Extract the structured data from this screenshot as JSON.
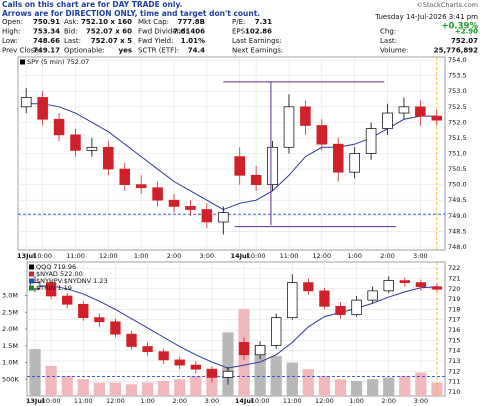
{
  "header": {
    "notes": [
      "Calls on this chart are for DAY TRADE only.",
      "Arrows are for DIRECTION ONLY, time and target don't count."
    ],
    "credit": "©StockCharts.com"
  },
  "quote": {
    "columns": [
      [
        [
          "Open:",
          "750.91"
        ],
        [
          "High:",
          "753.34"
        ],
        [
          "Low:",
          "748.66"
        ],
        [
          "Prev Close:",
          "749.17"
        ]
      ],
      [
        [
          "Ask:",
          "752.10 x 160"
        ],
        [
          "Bid:",
          "752.07 x 60"
        ],
        [
          "Last:",
          "752.07 x 5"
        ],
        [
          "Optionable:",
          "yes"
        ]
      ],
      [
        [
          "Mkt Cap:",
          "777.8B"
        ],
        [
          "Fwd Dividend:",
          "7.61406"
        ],
        [
          "Fwd Yield:",
          "1.01%"
        ],
        [
          "SCTR (ETF):",
          "74.4"
        ]
      ],
      [
        [
          "P/E:",
          "7.31"
        ],
        [
          "EPS:",
          "102.86"
        ],
        [
          "Last Earnings:",
          ""
        ],
        [
          "Next Earnings:",
          ""
        ]
      ]
    ],
    "right": {
      "datetime": "Tuesday 14-Jul-2026  3:41 pm",
      "change_pct": "+0.39%",
      "chg": [
        "Chg:",
        "+2.90"
      ],
      "last": [
        "Last:",
        "752.07"
      ],
      "volume": [
        "Volume:",
        "25,776,892"
      ]
    }
  },
  "chart_data": [
    {
      "type": "candlestick",
      "legend": [
        {
          "text": "SPY (5 min) 752.07",
          "color": "#000000"
        }
      ],
      "open": [
        752.5,
        752.8,
        752.1,
        751.6,
        751.1,
        751.2,
        750.5,
        750.0,
        749.9,
        749.5,
        749.3,
        749.2,
        748.8,
        750.9,
        750.3,
        750.0,
        751.2,
        752.5,
        751.9,
        751.3,
        750.4,
        751.0,
        751.8,
        752.3,
        752.5,
        752.2
      ],
      "high": [
        753.1,
        753.0,
        752.3,
        751.8,
        751.5,
        751.4,
        750.7,
        750.3,
        750.1,
        749.7,
        749.5,
        749.4,
        749.3,
        751.2,
        750.6,
        751.4,
        752.9,
        752.7,
        752.1,
        751.5,
        751.2,
        752.0,
        752.6,
        752.8,
        752.7,
        752.4
      ],
      "low": [
        752.3,
        751.9,
        751.4,
        750.9,
        750.9,
        750.3,
        749.8,
        749.7,
        749.3,
        749.1,
        749.0,
        748.6,
        748.4,
        750.0,
        749.8,
        749.8,
        751.0,
        751.6,
        751.1,
        750.1,
        750.2,
        750.8,
        751.6,
        752.1,
        751.9,
        751.9
      ],
      "close": [
        752.8,
        752.1,
        751.6,
        751.1,
        751.2,
        750.5,
        750.0,
        749.9,
        749.5,
        749.3,
        749.2,
        748.8,
        749.1,
        750.3,
        750.0,
        751.2,
        752.5,
        751.9,
        751.3,
        750.4,
        751.0,
        751.8,
        752.3,
        752.5,
        752.2,
        752.07
      ],
      "ma": [
        752.6,
        752.6,
        752.5,
        752.3,
        752.0,
        751.7,
        751.3,
        750.9,
        750.5,
        750.1,
        749.8,
        749.5,
        749.2,
        749.4,
        749.5,
        749.8,
        750.3,
        750.9,
        751.2,
        751.2,
        751.3,
        751.5,
        751.8,
        752.1,
        752.2,
        752.2
      ],
      "ma_color": "#2b3a9a",
      "up_color": "#000000",
      "down_color": "#d0202a",
      "segments": [
        {
          "x": [
            12,
            21.8
          ],
          "y": [
            753.3,
            753.3
          ]
        },
        {
          "x": [
            12.7,
            22.5
          ],
          "y": [
            748.65,
            748.65
          ]
        },
        {
          "x": [
            14.9,
            14.9
          ],
          "y": [
            748.7,
            753.3
          ]
        }
      ],
      "segment_color": "#5b2d8e",
      "dashed_level": 749.05,
      "dashed_color": "#2e46c8",
      "xlim": [
        -0.5,
        25.5
      ],
      "xticks": [
        {
          "value": 0,
          "label": "13Jul"
        },
        {
          "value": 1,
          "label": "10:00"
        },
        {
          "value": 3,
          "label": "11:00"
        },
        {
          "value": 5,
          "label": "12:00"
        },
        {
          "value": 7,
          "label": "1:00"
        },
        {
          "value": 9,
          "label": "2:00"
        },
        {
          "value": 11,
          "label": "3:00"
        },
        {
          "value": 13,
          "label": "14Jul"
        },
        {
          "value": 14,
          "label": "10:00"
        },
        {
          "value": 16,
          "label": "11:00"
        },
        {
          "value": 18,
          "label": "12:00"
        },
        {
          "value": 20,
          "label": "1:00"
        },
        {
          "value": 22,
          "label": "2:00"
        },
        {
          "value": 24,
          "label": "3:00"
        }
      ],
      "ylim": [
        747.9,
        754.1
      ],
      "yticks": [
        {
          "value": 748,
          "label": "748.0"
        },
        748.5,
        {
          "value": 749,
          "label": "749.0"
        },
        749.5,
        {
          "value": 750,
          "label": "750.0"
        },
        750.5,
        {
          "value": 751,
          "label": "751.0"
        },
        751.5,
        {
          "value": 752,
          "label": "752.0"
        },
        752.5,
        {
          "value": 753,
          "label": "753.0"
        },
        753.5,
        {
          "value": 754,
          "label": "754.0"
        }
      ],
      "grid": true
    },
    {
      "type": "candlestick",
      "legend": [
        {
          "text": "QQQ 719.96",
          "color": "#000000"
        },
        {
          "text": "$NYAD 522.00",
          "color": "#d0202a"
        },
        {
          "text": "$NYUPV:$NYDNV 1.23",
          "color": "#2e46c8"
        },
        {
          "text": "$TRIN 1.19",
          "color": "#1a8a2a"
        }
      ],
      "open": [
        720.0,
        720.6,
        719.3,
        718.5,
        717.2,
        716.8,
        715.6,
        714.4,
        713.9,
        713.1,
        712.6,
        712.2,
        711.4,
        714.8,
        713.6,
        714.5,
        717.2,
        720.6,
        719.8,
        718.3,
        717.5,
        718.9,
        719.8,
        720.8,
        720.6,
        720.2
      ],
      "high": [
        721.2,
        720.9,
        719.6,
        718.8,
        717.6,
        717.1,
        715.9,
        714.8,
        714.2,
        713.4,
        713.0,
        712.5,
        712.4,
        715.3,
        714.9,
        717.6,
        721.4,
        721.0,
        720.1,
        718.7,
        719.3,
        720.2,
        721.2,
        721.1,
        720.9,
        720.5
      ],
      "low": [
        719.7,
        719.0,
        718.1,
        716.9,
        716.3,
        715.3,
        714.1,
        713.5,
        712.7,
        712.2,
        711.8,
        710.9,
        710.7,
        713.1,
        713.2,
        714.2,
        717.0,
        719.4,
        718.0,
        717.1,
        717.3,
        718.6,
        719.6,
        720.2,
        719.8,
        719.7
      ],
      "close": [
        720.6,
        719.3,
        718.5,
        717.2,
        716.8,
        715.6,
        714.4,
        713.9,
        713.1,
        712.6,
        712.2,
        711.4,
        712.0,
        713.6,
        714.5,
        717.2,
        720.6,
        719.8,
        718.3,
        717.5,
        718.9,
        719.8,
        720.8,
        720.6,
        720.2,
        719.96
      ],
      "ma": [
        720.2,
        720.3,
        720.0,
        719.5,
        718.8,
        718.0,
        717.1,
        716.2,
        715.3,
        714.4,
        713.6,
        712.9,
        712.3,
        712.6,
        712.9,
        713.6,
        714.8,
        716.3,
        717.3,
        717.7,
        718.1,
        718.6,
        719.2,
        719.7,
        720.1,
        720.2
      ],
      "ma_color": "#2b3a9a",
      "up_color": "#000000",
      "down_color": "#d0202a",
      "volume": [
        1400000,
        900000,
        600000,
        500000,
        400000,
        400000,
        350000,
        400000,
        450000,
        500000,
        600000,
        800000,
        1900000,
        2600000,
        1500000,
        1200000,
        1000000,
        800000,
        600000,
        500000,
        450000,
        500000,
        550000,
        600000,
        700000,
        400000
      ],
      "volume_up_color": "#b8b8b8",
      "volume_down_color": "#f0b8bc",
      "dashed_level": 711.5,
      "dashed_color": "#2e46c8",
      "xlim": [
        -0.5,
        25.5
      ],
      "xticks": [
        {
          "value": 0,
          "label": "13Jul"
        },
        {
          "value": 1,
          "label": "10:00"
        },
        {
          "value": 3,
          "label": "11:00"
        },
        {
          "value": 5,
          "label": "12:00"
        },
        {
          "value": 7,
          "label": "1:00"
        },
        {
          "value": 9,
          "label": "2:00"
        },
        {
          "value": 11,
          "label": "3:00"
        },
        {
          "value": 13,
          "label": "14Jul"
        },
        {
          "value": 14,
          "label": "10:00"
        },
        {
          "value": 16,
          "label": "11:00"
        },
        {
          "value": 18,
          "label": "12:00"
        },
        {
          "value": 20,
          "label": "1:00"
        },
        {
          "value": 22,
          "label": "2:00"
        },
        {
          "value": 24,
          "label": "3:00"
        }
      ],
      "ylim": [
        709.6,
        722.6
      ],
      "yticks": [
        710,
        711,
        712,
        713,
        714,
        715,
        716,
        717,
        718,
        719,
        720,
        721,
        722
      ],
      "vlim": [
        0,
        4000000
      ],
      "vticks": [
        {
          "value": 500000,
          "label": "500K"
        },
        {
          "value": 1000000,
          "label": "1.0M"
        },
        {
          "value": 1500000,
          "label": "1.5M"
        },
        {
          "value": 2000000,
          "label": "2.0M"
        },
        {
          "value": 2500000,
          "label": "2.5M"
        },
        {
          "value": 3000000,
          "label": "3.0M"
        }
      ],
      "grid": true
    }
  ]
}
